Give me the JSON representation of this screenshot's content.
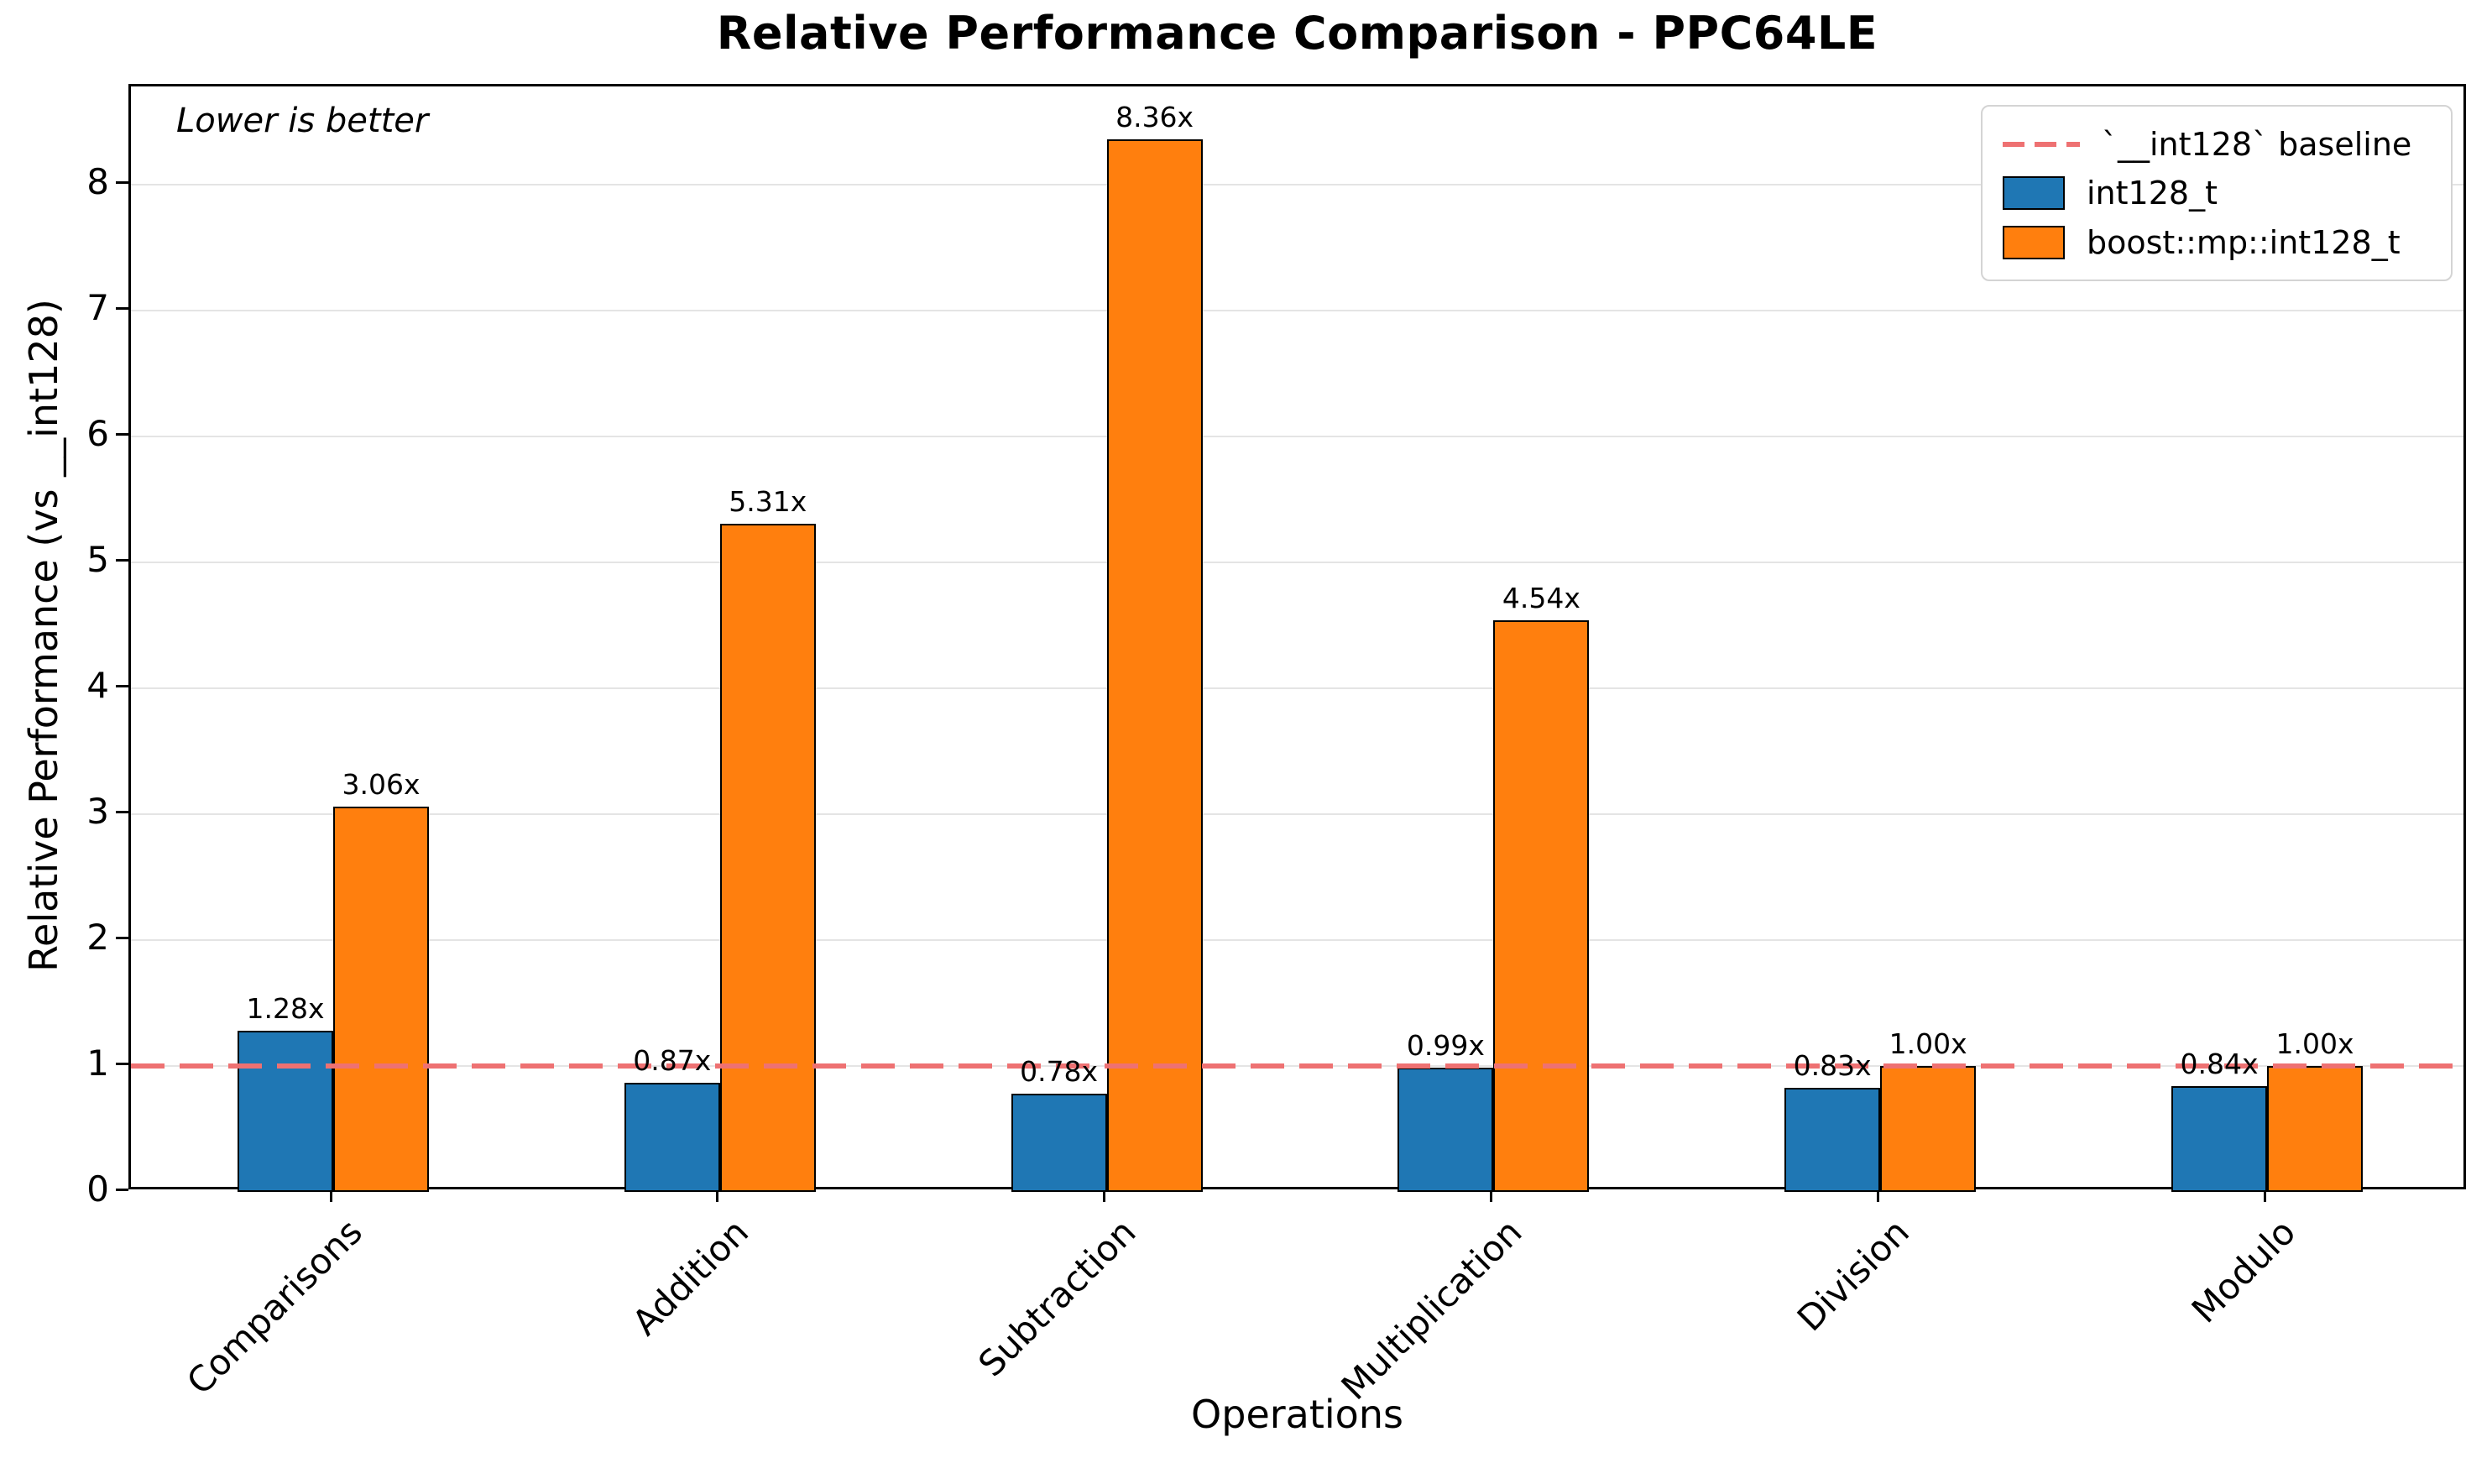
{
  "chart_data": {
    "type": "bar",
    "title": "Relative Performance Comparison - PPC64LE",
    "xlabel": "Operations",
    "ylabel": "Relative Performance (vs __int128)",
    "annotation": "Lower is better",
    "categories": [
      "Comparisons",
      "Addition",
      "Subtraction",
      "Multiplication",
      "Division",
      "Modulo"
    ],
    "series": [
      {
        "name": "int128_t",
        "color": "#1f77b4",
        "values": [
          1.28,
          0.87,
          0.78,
          0.99,
          0.83,
          0.84
        ]
      },
      {
        "name": "boost::mp::int128_t",
        "color": "#ff7f0e",
        "values": [
          3.06,
          5.31,
          8.36,
          4.54,
          1.0,
          1.0
        ]
      }
    ],
    "value_label_suffix": "x",
    "baseline": {
      "value": 1.0,
      "label": "`__int128` baseline",
      "color": "#ee7172"
    },
    "ylim": [
      0,
      8.78
    ],
    "yticks": [
      0,
      1,
      2,
      3,
      4,
      5,
      6,
      7,
      8
    ],
    "grid": true,
    "grid_color": "#e4e4e4",
    "legend_position": "upper right"
  }
}
